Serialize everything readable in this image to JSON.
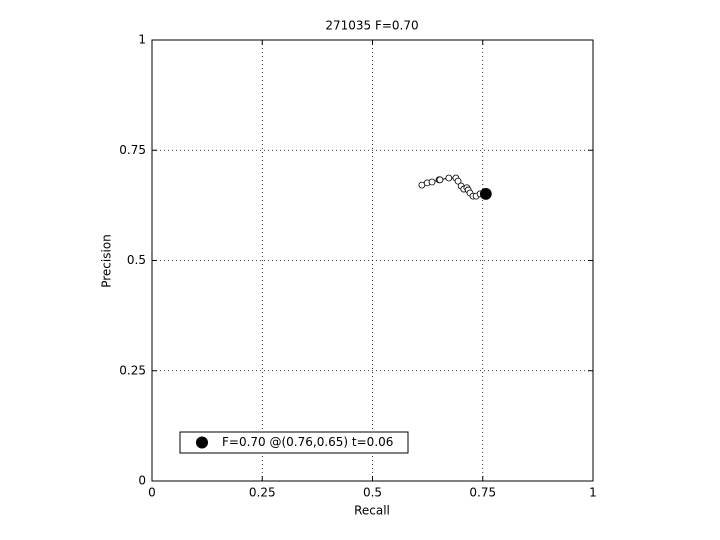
{
  "chart_data": {
    "type": "line",
    "title": "271035 F=0.70",
    "x_label": "Recall",
    "y_label": "Precision",
    "xlim": [
      0,
      1
    ],
    "ylim": [
      0,
      1
    ],
    "xticks": [
      0,
      0.25,
      0.5,
      0.75,
      1
    ],
    "yticks": [
      0,
      0.25,
      0.5,
      0.75,
      1
    ],
    "grid": true,
    "legend_position": "lower left",
    "series": [
      {
        "color": "#000000",
        "marker_fill": "none",
        "x": [
          0.612,
          0.624,
          0.635,
          0.651,
          0.653,
          0.673,
          0.689,
          0.694,
          0.701,
          0.707,
          0.714,
          0.717,
          0.721,
          0.728,
          0.735,
          0.744,
          0.753
        ],
        "values": [
          0.671,
          0.676,
          0.678,
          0.683,
          0.683,
          0.687,
          0.687,
          0.68,
          0.669,
          0.662,
          0.665,
          0.66,
          0.653,
          0.646,
          0.646,
          0.651,
          0.651
        ]
      },
      {
        "name": "F=0.70 @(0.76,0.65) t=0.06",
        "color": "#000000",
        "marker_fill": "#000000",
        "x": [
          0.757
        ],
        "values": [
          0.651
        ]
      }
    ]
  }
}
